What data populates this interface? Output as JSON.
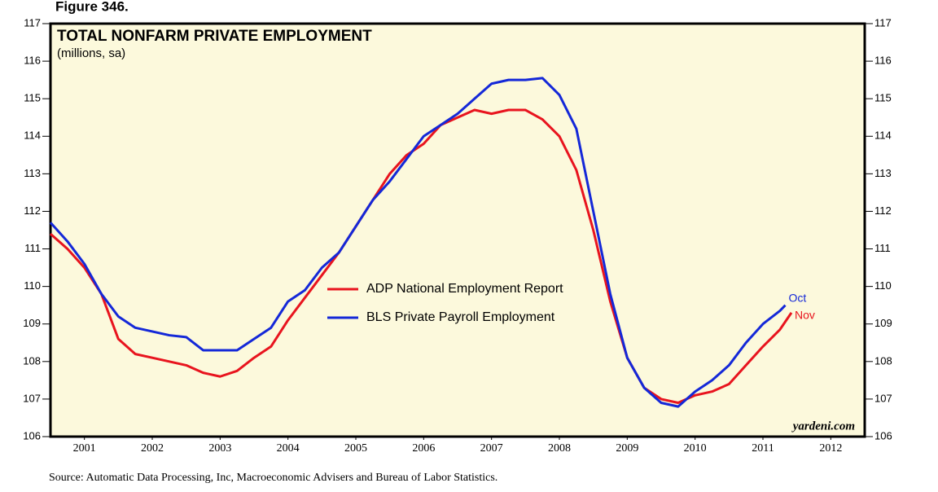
{
  "chart_data": {
    "type": "line",
    "figure_label": "Figure 346.",
    "title": "TOTAL NONFARM PRIVATE EMPLOYMENT",
    "subtitle": "(millions, sa)",
    "source": "Source: Automatic Data Processing, Inc, Macroeconomic Advisers and Bureau of Labor Statistics.",
    "watermark": "yardeni.com",
    "xlim": [
      2001,
      2013
    ],
    "xticks": [
      {
        "value": 2001.5,
        "label": "2001"
      },
      {
        "value": 2002.5,
        "label": "2002"
      },
      {
        "value": 2003.5,
        "label": "2003"
      },
      {
        "value": 2004.5,
        "label": "2004"
      },
      {
        "value": 2005.5,
        "label": "2005"
      },
      {
        "value": 2006.5,
        "label": "2006"
      },
      {
        "value": 2007.5,
        "label": "2007"
      },
      {
        "value": 2008.5,
        "label": "2008"
      },
      {
        "value": 2009.5,
        "label": "2009"
      },
      {
        "value": 2010.5,
        "label": "2010"
      },
      {
        "value": 2011.5,
        "label": "2011"
      },
      {
        "value": 2012.5,
        "label": "2012"
      }
    ],
    "ylim": [
      106,
      117
    ],
    "yticks": [
      106,
      107,
      108,
      109,
      110,
      111,
      112,
      113,
      114,
      115,
      116,
      117
    ],
    "background": "#fcf9dc",
    "series": [
      {
        "name": "ADP National Employment Report",
        "color": "#e8141e",
        "end_label": "Nov",
        "x": [
          2001.0,
          2001.25,
          2001.5,
          2001.75,
          2002.0,
          2002.25,
          2002.5,
          2002.75,
          2003.0,
          2003.25,
          2003.5,
          2003.75,
          2004.0,
          2004.25,
          2004.5,
          2004.75,
          2005.0,
          2005.25,
          2005.5,
          2005.75,
          2006.0,
          2006.25,
          2006.5,
          2006.75,
          2007.0,
          2007.25,
          2007.5,
          2007.75,
          2008.0,
          2008.25,
          2008.5,
          2008.75,
          2009.0,
          2009.25,
          2009.5,
          2009.75,
          2010.0,
          2010.25,
          2010.5,
          2010.75,
          2011.0,
          2011.25,
          2011.5,
          2011.75,
          2011.92
        ],
        "values": [
          111.4,
          111.0,
          110.5,
          109.8,
          108.6,
          108.2,
          108.1,
          108.0,
          107.9,
          107.7,
          107.6,
          107.75,
          108.1,
          108.4,
          109.1,
          109.7,
          110.3,
          110.9,
          111.6,
          112.3,
          113.0,
          113.5,
          113.8,
          114.3,
          114.5,
          114.7,
          114.6,
          114.7,
          114.7,
          114.45,
          114.0,
          113.1,
          111.5,
          109.6,
          108.1,
          107.3,
          107.0,
          106.9,
          107.1,
          107.2,
          107.4,
          107.9,
          108.4,
          108.85,
          109.3
        ]
      },
      {
        "name": "BLS Private Payroll Employment",
        "color": "#1428d8",
        "end_label": "Oct",
        "x": [
          2001.0,
          2001.25,
          2001.5,
          2001.75,
          2002.0,
          2002.25,
          2002.5,
          2002.75,
          2003.0,
          2003.25,
          2003.5,
          2003.75,
          2004.0,
          2004.25,
          2004.5,
          2004.75,
          2005.0,
          2005.25,
          2005.5,
          2005.75,
          2006.0,
          2006.25,
          2006.5,
          2006.75,
          2007.0,
          2007.25,
          2007.5,
          2007.75,
          2008.0,
          2008.25,
          2008.5,
          2008.75,
          2009.0,
          2009.25,
          2009.5,
          2009.75,
          2010.0,
          2010.25,
          2010.5,
          2010.75,
          2011.0,
          2011.25,
          2011.5,
          2011.75,
          2011.83
        ],
        "values": [
          111.7,
          111.2,
          110.6,
          109.8,
          109.2,
          108.9,
          108.8,
          108.7,
          108.65,
          108.3,
          108.3,
          108.3,
          108.6,
          108.9,
          109.6,
          109.9,
          110.5,
          110.9,
          111.6,
          112.3,
          112.8,
          113.4,
          114.0,
          114.3,
          114.6,
          115.0,
          115.4,
          115.5,
          115.5,
          115.55,
          115.1,
          114.2,
          112.0,
          109.8,
          108.1,
          107.3,
          106.9,
          106.8,
          107.2,
          107.5,
          107.9,
          108.5,
          109.0,
          109.35,
          109.5
        ]
      }
    ]
  }
}
